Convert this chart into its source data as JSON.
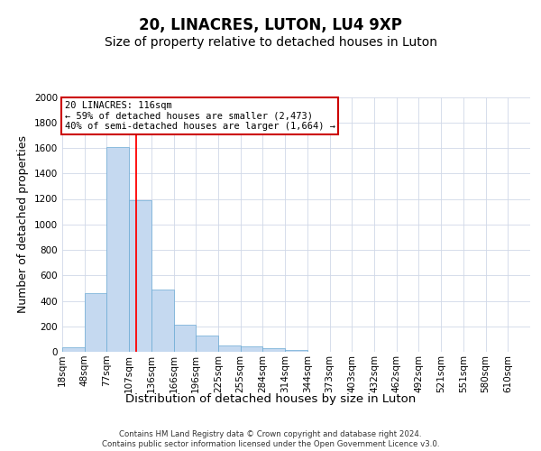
{
  "title": "20, LINACRES, LUTON, LU4 9XP",
  "subtitle": "Size of property relative to detached houses in Luton",
  "xlabel": "Distribution of detached houses by size in Luton",
  "ylabel": "Number of detached properties",
  "footer_line1": "Contains HM Land Registry data © Crown copyright and database right 2024.",
  "footer_line2": "Contains public sector information licensed under the Open Government Licence v3.0.",
  "annotation_line1": "20 LINACRES: 116sqm",
  "annotation_line2": "← 59% of detached houses are smaller (2,473)",
  "annotation_line3": "40% of semi-detached houses are larger (1,664) →",
  "bar_color": "#c5d9f0",
  "bar_edge_color": "#6aaad4",
  "red_line_index": 3,
  "categories": [
    "18sqm",
    "48sqm",
    "77sqm",
    "107sqm",
    "136sqm",
    "166sqm",
    "196sqm",
    "225sqm",
    "255sqm",
    "284sqm",
    "314sqm",
    "344sqm",
    "373sqm",
    "403sqm",
    "432sqm",
    "462sqm",
    "492sqm",
    "521sqm",
    "551sqm",
    "580sqm",
    "610sqm"
  ],
  "values": [
    35,
    460,
    1610,
    1190,
    490,
    210,
    130,
    50,
    40,
    25,
    15,
    0,
    0,
    0,
    0,
    0,
    0,
    0,
    0,
    0,
    0
  ],
  "ylim": [
    0,
    2000
  ],
  "yticks": [
    0,
    200,
    400,
    600,
    800,
    1000,
    1200,
    1400,
    1600,
    1800,
    2000
  ],
  "background_color": "#ffffff",
  "grid_color": "#d0d8e8",
  "title_fontsize": 12,
  "subtitle_fontsize": 10,
  "axis_label_fontsize": 9,
  "tick_fontsize": 7.5,
  "annotation_box_color": "#ffffff",
  "annotation_box_edge_color": "#cc0000",
  "annotation_fontsize": 7.5
}
